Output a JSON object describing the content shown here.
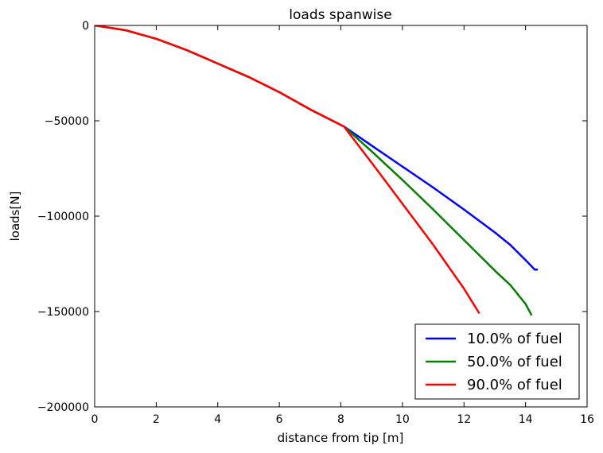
{
  "chart_data": {
    "type": "line",
    "title": "loads spanwise",
    "xlabel": "distance from tip [m]",
    "ylabel": "loads[N]",
    "xlim": [
      0,
      16
    ],
    "ylim": [
      -200000,
      0
    ],
    "xticks": [
      0,
      2,
      4,
      6,
      8,
      10,
      12,
      14,
      16
    ],
    "yticks": [
      0,
      -50000,
      -100000,
      -150000,
      -200000
    ],
    "xtick_labels": [
      "0",
      "2",
      "4",
      "6",
      "8",
      "10",
      "12",
      "14",
      "16"
    ],
    "ytick_labels": [
      "0",
      "−50000",
      "−100000",
      "−150000",
      "−200000"
    ],
    "legend_position": "lower-right",
    "grid": false,
    "series": [
      {
        "name": "10.0% of fuel",
        "color": "#0000ff",
        "x": [
          0,
          1,
          2,
          3,
          4,
          5,
          6,
          7,
          8.1,
          9,
          10,
          11,
          12,
          13,
          13.5,
          14,
          14.3,
          14.4
        ],
        "y": [
          0,
          -2500,
          -7000,
          -13000,
          -20000,
          -27000,
          -35000,
          -44000,
          -53000,
          -63000,
          -74000,
          -85000,
          -96500,
          -108500,
          -115000,
          -123000,
          -128000,
          -128000
        ]
      },
      {
        "name": "50.0% of fuel",
        "color": "#008000",
        "x": [
          0,
          1,
          2,
          3,
          4,
          5,
          6,
          7,
          8.1,
          9,
          10,
          11,
          12,
          13,
          13.5,
          14,
          14.2
        ],
        "y": [
          0,
          -2500,
          -7000,
          -13000,
          -20000,
          -27000,
          -35000,
          -44000,
          -53000,
          -66000,
          -81000,
          -96500,
          -112500,
          -128500,
          -136000,
          -146000,
          -152000
        ]
      },
      {
        "name": "90.0% of fuel",
        "color": "#ff0000",
        "x": [
          0,
          1,
          2,
          3,
          4,
          5,
          6,
          7,
          8.1,
          9,
          10,
          11,
          12,
          12.5
        ],
        "y": [
          0,
          -2500,
          -7000,
          -13000,
          -20000,
          -27000,
          -35000,
          -44000,
          -53000,
          -72000,
          -93500,
          -115000,
          -138000,
          -151000
        ]
      }
    ]
  }
}
